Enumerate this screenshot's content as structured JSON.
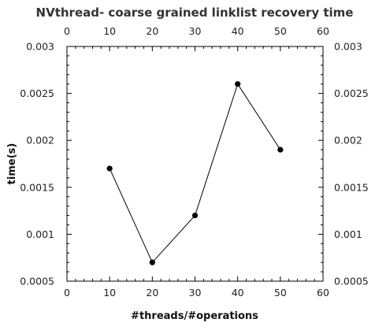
{
  "chart_data": {
    "type": "line",
    "title": "NVthread- coarse grained linklist recovery time",
    "xlabel": "#threads/#operations",
    "ylabel": "time(s)",
    "xlim": [
      0,
      60
    ],
    "ylim": [
      0.0005,
      0.003
    ],
    "x_ticks": [
      "0",
      "10",
      "20",
      "30",
      "40",
      "50",
      "60"
    ],
    "y_ticks": [
      "0.0005",
      "0.001",
      "0.0015",
      "0.002",
      "0.0025",
      "0.003"
    ],
    "series": [
      {
        "x": [
          10,
          20,
          30,
          40,
          50
        ],
        "y": [
          0.0017,
          0.0007,
          0.0012,
          0.0026,
          0.0019
        ]
      }
    ],
    "grid": false,
    "mirror_axes": true
  }
}
